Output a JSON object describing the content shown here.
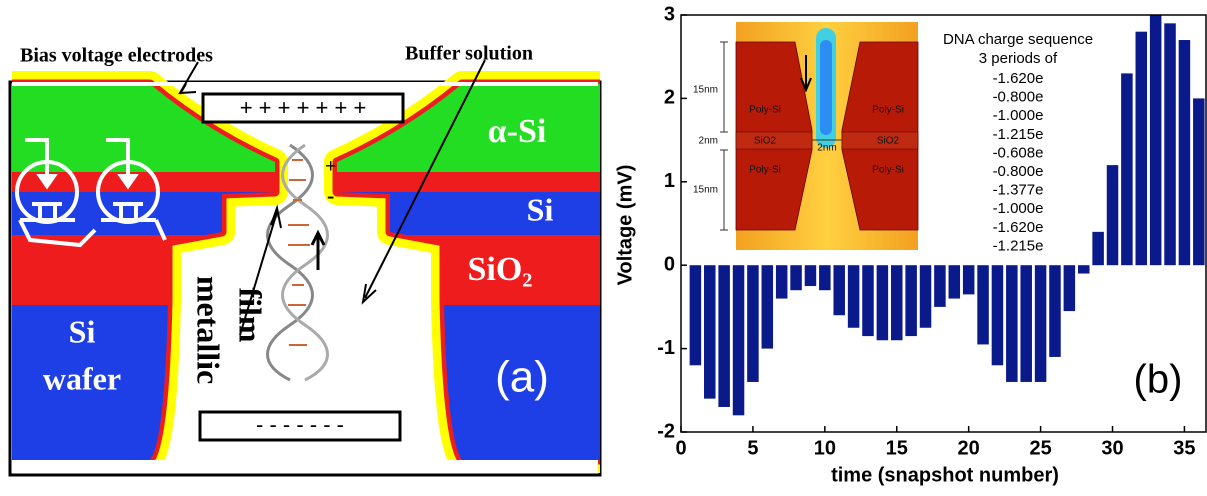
{
  "diagram": {
    "electrodes_label": "Bias voltage electrodes",
    "buffer_label": "Buffer solution",
    "top_electrode": "+ + + + + + +",
    "bottom_electrode": "- - - - - - -",
    "alpha_si": "α-Si",
    "si": "Si",
    "sio2": "SiO₂",
    "wafer_line1": "Si",
    "wafer_line2": "wafer",
    "film_line1": "metallic",
    "film_line2": "film",
    "plus": "+",
    "minus": "-",
    "panel_label": "(a)"
  },
  "chart_data": {
    "type": "bar",
    "xlabel": "time (snapshot number)",
    "ylabel": "Voltage (mV)",
    "x": [
      1,
      2,
      3,
      4,
      5,
      6,
      7,
      8,
      9,
      10,
      11,
      12,
      13,
      14,
      15,
      16,
      17,
      18,
      19,
      20,
      21,
      22,
      23,
      24,
      25,
      26,
      27,
      28,
      29,
      30,
      31,
      32,
      33,
      34,
      35,
      36
    ],
    "values": [
      -1.2,
      -1.6,
      -1.7,
      -1.8,
      -1.4,
      -1.0,
      -0.4,
      -0.3,
      -0.25,
      -0.3,
      -0.6,
      -0.75,
      -0.85,
      -0.9,
      -0.9,
      -0.85,
      -0.75,
      -0.5,
      -0.4,
      -0.35,
      -0.95,
      -1.2,
      -1.4,
      -1.4,
      -1.4,
      -1.1,
      -0.55,
      -0.1,
      0.4,
      1.2,
      2.3,
      2.8,
      3.0,
      2.9,
      2.7,
      2.0
    ],
    "color": "#0b1a8a",
    "xlim": [
      0,
      36.5
    ],
    "ylim": [
      -2,
      3
    ],
    "xticks": [
      0,
      5,
      10,
      15,
      20,
      25,
      30,
      35
    ],
    "yticks": [
      -2,
      -1,
      0,
      1,
      2,
      3
    ],
    "grid": false,
    "panel_label": "(b)",
    "sequence_title": "DNA charge sequence",
    "sequence_subtitle": "3 periods of",
    "charge_sequence": [
      "-1.620e",
      "-0.800e",
      "-1.000e",
      "-1.215e",
      "-0.608e",
      "-0.800e",
      "-1.377e",
      "-1.000e",
      "-1.620e",
      "-1.215e"
    ],
    "inset": {
      "top_gap": "15nm",
      "mid_gap": "2nm",
      "bottom_gap": "15nm",
      "pore_width": "2nm",
      "poly_tl": "Poly-Si",
      "poly_tr": "Poly-Si",
      "oxide_l": "SiO2",
      "oxide_r": "SiO2",
      "poly_bl": "Poly-Si",
      "poly_br": "Poly-Si"
    }
  }
}
